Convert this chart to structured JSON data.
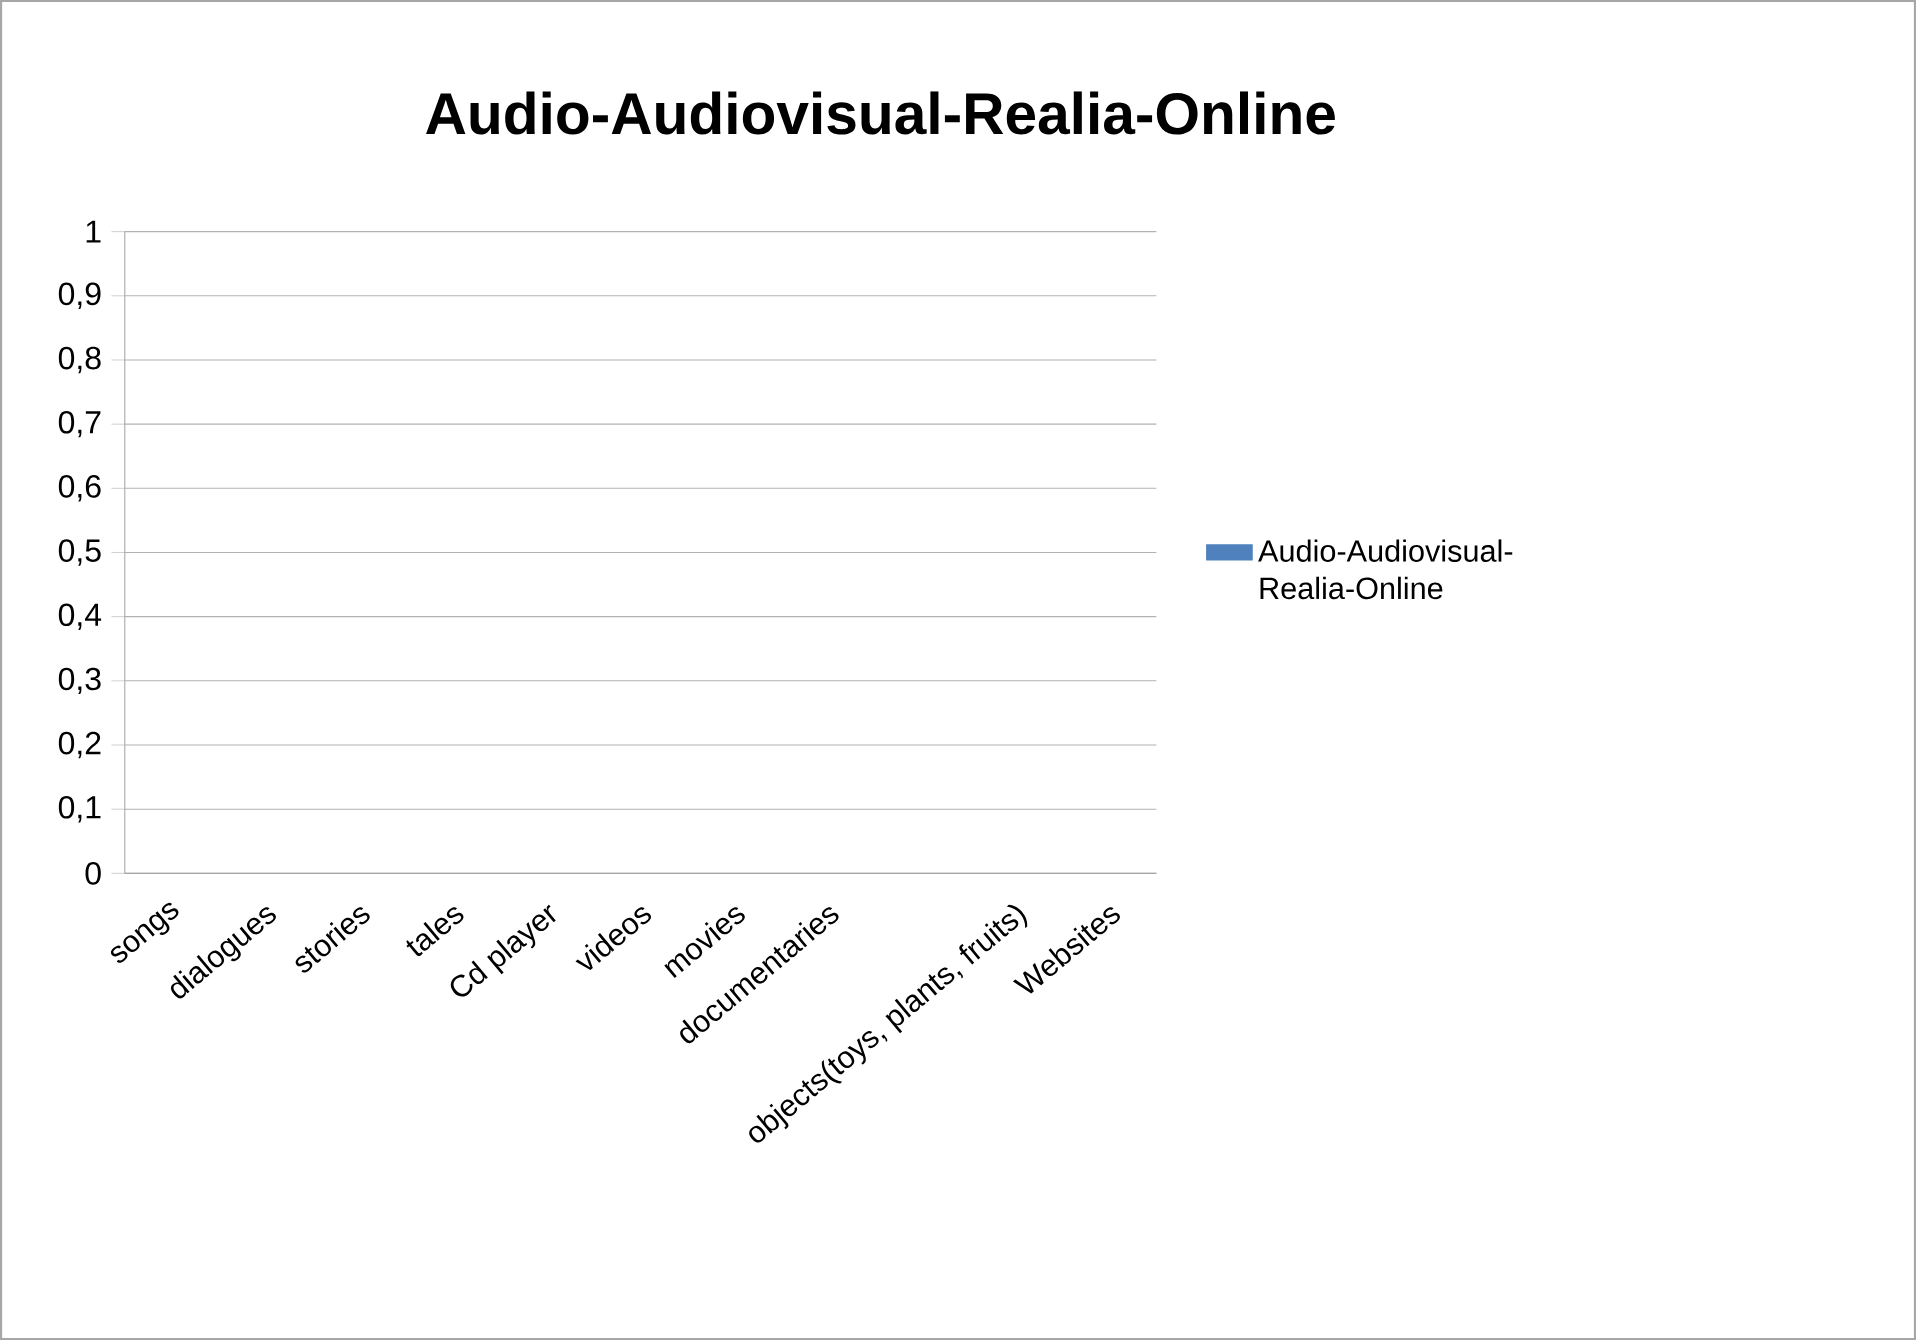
{
  "chart_data": {
    "type": "bar",
    "title": "Audio-Audiovisual-Realia-Online",
    "categories": [
      "songs",
      "dialogues",
      "stories",
      "tales",
      "Cd player",
      "videos",
      "movies",
      "documentaries",
      null,
      "objects(toys, plants, fruits)",
      "Websites"
    ],
    "series": [
      {
        "name": "Audio-Audiovisual-Realia-Online",
        "color": "#4f81bd",
        "values": [
          0,
          0,
          0,
          0,
          0,
          0,
          0,
          0,
          0,
          0,
          0
        ]
      }
    ],
    "ylim": [
      0,
      1
    ],
    "yticks": [
      0,
      {
        "value": 0.1,
        "label": "0,1"
      },
      {
        "value": 0.2,
        "label": "0,2"
      },
      {
        "value": 0.3,
        "label": "0,3"
      },
      {
        "value": 0.4,
        "label": "0,4"
      },
      {
        "value": 0.5,
        "label": "0,5"
      },
      {
        "value": 0.6,
        "label": "0,6"
      },
      {
        "value": 0.7,
        "label": "0,7"
      },
      {
        "value": 0.8,
        "label": "0,8"
      },
      {
        "value": 0.9,
        "label": "0,9"
      },
      1
    ],
    "grid": "y",
    "legend": "right"
  }
}
